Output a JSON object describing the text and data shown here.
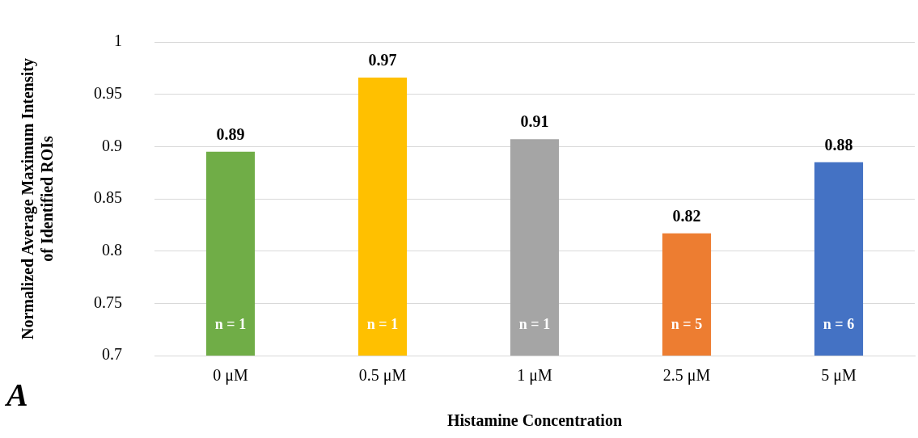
{
  "chart_data": {
    "type": "bar",
    "xlabel": "Histamine Concentration",
    "ylabel": "Normalized Average Maximum Intensity of Identified ROIs",
    "categories": [
      "0 μM",
      "0.5 μM",
      "1 μM",
      "2.5 μM",
      "5 μM"
    ],
    "values": [
      0.895,
      0.966,
      0.907,
      0.817,
      0.885
    ],
    "colors": [
      "#70ad47",
      "#ffc000",
      "#a5a5a5",
      "#ed7d31",
      "#4472c4"
    ],
    "value_labels": [
      "0.89",
      "0.97",
      "0.91",
      "0.82",
      "0.88"
    ],
    "ylim": [
      0.7,
      1
    ],
    "yticks": [
      0.7,
      0.75,
      0.8,
      0.85,
      0.9,
      0.95,
      1
    ],
    "grid": "y",
    "legend": false,
    "annotations": [
      "n = 1",
      "n = 1",
      "n = 1",
      "n = 5",
      "n = 6",
      "A"
    ]
  }
}
